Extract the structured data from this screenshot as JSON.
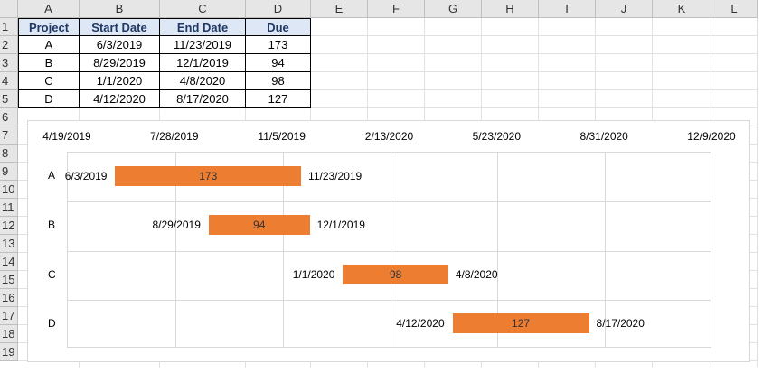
{
  "columns": [
    "A",
    "B",
    "C",
    "D",
    "E",
    "F",
    "G",
    "H",
    "I",
    "J",
    "K",
    "L"
  ],
  "rows": [
    "1",
    "2",
    "3",
    "4",
    "5",
    "6",
    "7",
    "8",
    "9",
    "10",
    "11",
    "12",
    "13",
    "14",
    "15",
    "16",
    "17",
    "18",
    "19"
  ],
  "table": {
    "headers": [
      "Project",
      "Start Date",
      "End Date",
      "Due"
    ],
    "rows": [
      [
        "A",
        "6/3/2019",
        "11/23/2019",
        "173"
      ],
      [
        "B",
        "8/29/2019",
        "12/1/2019",
        "94"
      ],
      [
        "C",
        "1/1/2020",
        "4/8/2020",
        "98"
      ],
      [
        "D",
        "4/12/2020",
        "8/17/2020",
        "127"
      ]
    ]
  },
  "chart_data": {
    "type": "bar",
    "orientation": "horizontal-gantt",
    "categories": [
      "A",
      "B",
      "C",
      "D"
    ],
    "x_axis_ticks": [
      "4/19/2019",
      "7/28/2019",
      "11/5/2019",
      "2/13/2020",
      "5/23/2020",
      "8/31/2020",
      "12/9/2020"
    ],
    "xlim": [
      "4/19/2019",
      "12/9/2020"
    ],
    "x_axis_position": "top",
    "series": [
      {
        "start": "6/3/2019",
        "end": "11/23/2019",
        "value": 173
      },
      {
        "start": "8/29/2019",
        "end": "12/1/2019",
        "value": 94
      },
      {
        "start": "1/1/2020",
        "end": "4/8/2020",
        "value": 98
      },
      {
        "start": "4/12/2020",
        "end": "8/17/2020",
        "value": 127
      }
    ],
    "bar_color": "#ed7d31",
    "grid": true
  }
}
